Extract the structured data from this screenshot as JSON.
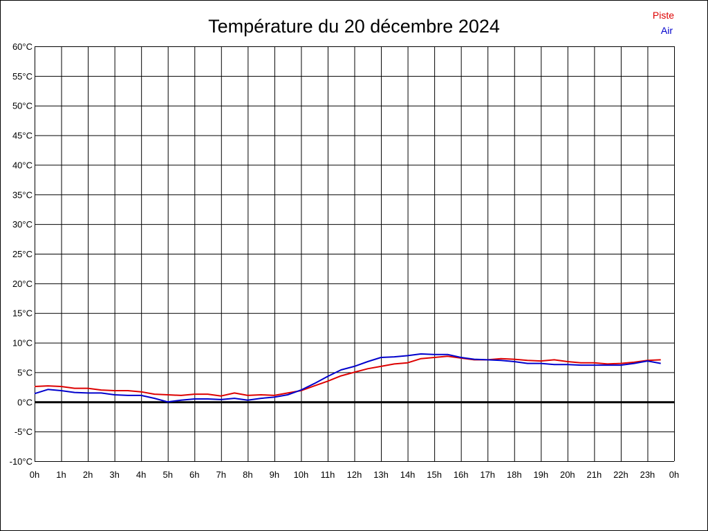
{
  "chart_data": {
    "type": "line",
    "title": "Température du 20 décembre 2024",
    "xlabel": "",
    "ylabel": "",
    "x_ticks": [
      "0h",
      "1h",
      "2h",
      "3h",
      "4h",
      "5h",
      "6h",
      "7h",
      "8h",
      "9h",
      "10h",
      "11h",
      "12h",
      "13h",
      "14h",
      "15h",
      "16h",
      "17h",
      "18h",
      "19h",
      "20h",
      "21h",
      "22h",
      "23h",
      "0h"
    ],
    "y_ticks": [
      "60°C",
      "55°C",
      "50°C",
      "45°C",
      "40°C",
      "35°C",
      "30°C",
      "25°C",
      "20°C",
      "15°C",
      "10°C",
      "5°C",
      "0°C",
      "-5°C",
      "-10°C"
    ],
    "xlim": [
      0,
      24
    ],
    "ylim": [
      -10,
      60
    ],
    "grid": true,
    "zero_line": true,
    "legend_position": "top-right",
    "x": [
      0,
      0.5,
      1,
      1.5,
      2,
      2.5,
      3,
      3.5,
      4,
      4.5,
      5,
      5.5,
      6,
      6.5,
      7,
      7.5,
      8,
      8.5,
      9,
      9.5,
      10,
      10.5,
      11,
      11.5,
      12,
      12.5,
      13,
      13.5,
      14,
      14.5,
      15,
      15.5,
      16,
      16.5,
      17,
      17.5,
      18,
      18.5,
      19,
      19.5,
      20,
      20.5,
      21,
      21.5,
      22,
      22.5,
      23,
      23.5
    ],
    "series": [
      {
        "name": "Piste",
        "color": "#dd0000",
        "values": [
          2.6,
          2.7,
          2.6,
          2.3,
          2.3,
          2.0,
          1.9,
          1.9,
          1.7,
          1.3,
          1.2,
          1.1,
          1.3,
          1.3,
          1.0,
          1.5,
          1.1,
          1.2,
          1.1,
          1.5,
          1.9,
          2.7,
          3.5,
          4.4,
          5.0,
          5.6,
          6.0,
          6.4,
          6.6,
          7.3,
          7.5,
          7.7,
          7.4,
          7.1,
          7.1,
          7.3,
          7.2,
          7.0,
          6.9,
          7.1,
          6.8,
          6.6,
          6.6,
          6.4,
          6.5,
          6.7,
          7.0,
          7.1
        ]
      },
      {
        "name": "Air",
        "color": "#0000cc",
        "values": [
          1.4,
          2.1,
          1.9,
          1.6,
          1.5,
          1.5,
          1.2,
          1.1,
          1.1,
          0.6,
          0.0,
          0.3,
          0.5,
          0.5,
          0.4,
          0.6,
          0.3,
          0.6,
          0.8,
          1.2,
          2.0,
          3.1,
          4.3,
          5.4,
          6.0,
          6.8,
          7.5,
          7.6,
          7.8,
          8.1,
          8.0,
          8.0,
          7.5,
          7.2,
          7.1,
          7.0,
          6.8,
          6.5,
          6.5,
          6.3,
          6.3,
          6.2,
          6.2,
          6.2,
          6.2,
          6.5,
          6.9,
          6.5
        ]
      }
    ]
  }
}
